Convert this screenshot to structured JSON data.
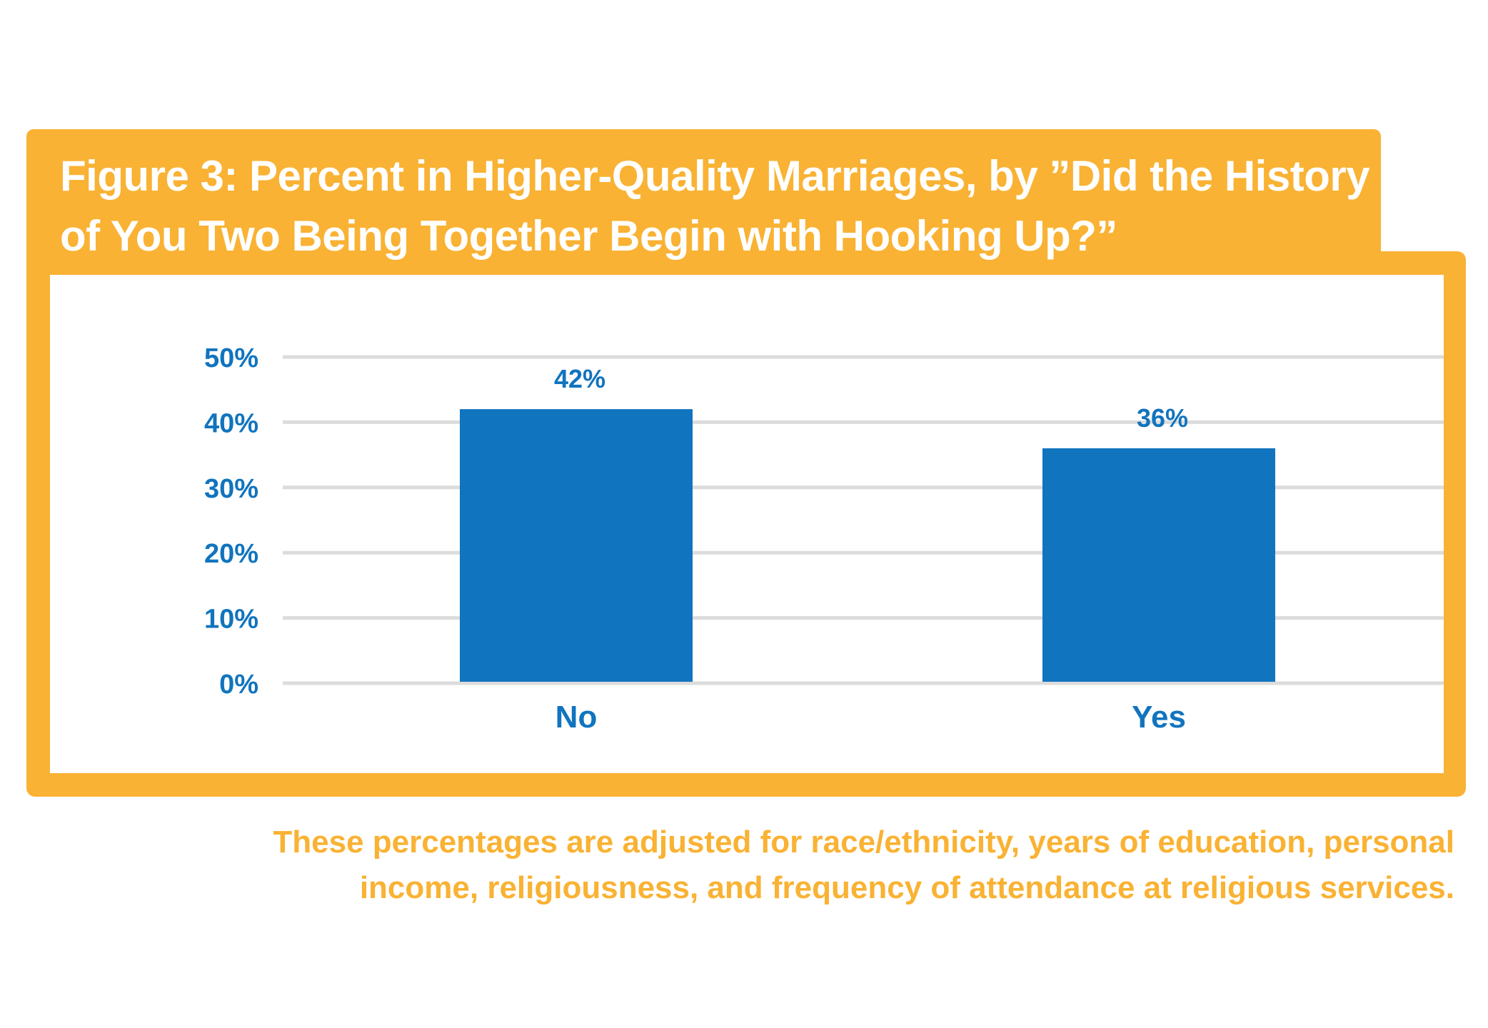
{
  "colors": {
    "accent": "#f9b233",
    "bar": "#1174be",
    "grid": "#dcdcdc",
    "text": "#1174be"
  },
  "chart_data": {
    "type": "bar",
    "title": "Figure 3: Percent in Higher-Quality Marriages, by ”Did the History of You Two Being Together Begin with Hooking Up?”",
    "categories": [
      "No",
      "Yes"
    ],
    "values": [
      42,
      36
    ],
    "data_labels": [
      "42%",
      "36%"
    ],
    "ylim": [
      0,
      50
    ],
    "yticks": [
      0,
      10,
      20,
      30,
      40,
      50
    ],
    "ytick_labels": [
      "0%",
      "10%",
      "20%",
      "30%",
      "40%",
      "50%"
    ],
    "xlabel": "",
    "ylabel": "",
    "grid": true,
    "note": "These percentages are adjusted for race/ethnicity, years of education, personal income, religiousness, and frequency of attendance at religious services."
  }
}
